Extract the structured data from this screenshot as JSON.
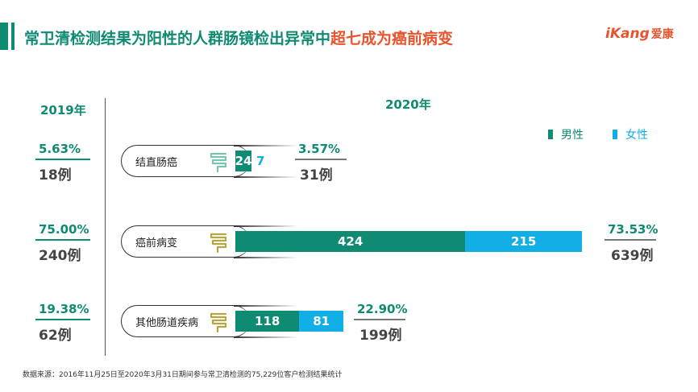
{
  "title": {
    "main": "常卫清检测结果为阳性的人群肠镜检出异常中",
    "highlight": "超七成为癌前病变"
  },
  "brand": {
    "latin": "iKang",
    "zh": "爱康"
  },
  "colors": {
    "male": "#0f8a73",
    "female": "#12aee6",
    "accent": "#e8542d"
  },
  "legend": {
    "male": "男性",
    "female": "女性"
  },
  "footnote": "数据来源：2016年11月25日至2020年3月31日期间参与常卫清检测的75,229位客户检测结果统计",
  "chart_data": {
    "type": "bar",
    "orientation": "horizontal",
    "stacked": true,
    "categories": [
      "结直肠癌",
      "癌前病变",
      "其他肠道疾病"
    ],
    "series": [
      {
        "name": "男性",
        "values": [
          24,
          424,
          118
        ]
      },
      {
        "name": "女性",
        "values": [
          7,
          215,
          81
        ]
      }
    ],
    "year_2019": {
      "label": "2019年",
      "percent": [
        "5.63%",
        "75.00%",
        "19.38%"
      ],
      "count": [
        "18例",
        "240例",
        "62例"
      ]
    },
    "year_2020": {
      "label": "2020年",
      "percent": [
        "3.57%",
        "73.53%",
        "22.90%"
      ],
      "count": [
        "31例",
        "639例",
        "199例"
      ]
    },
    "icons": [
      "intestine-icon",
      "intestine-icon",
      "intestine-icon"
    ]
  }
}
